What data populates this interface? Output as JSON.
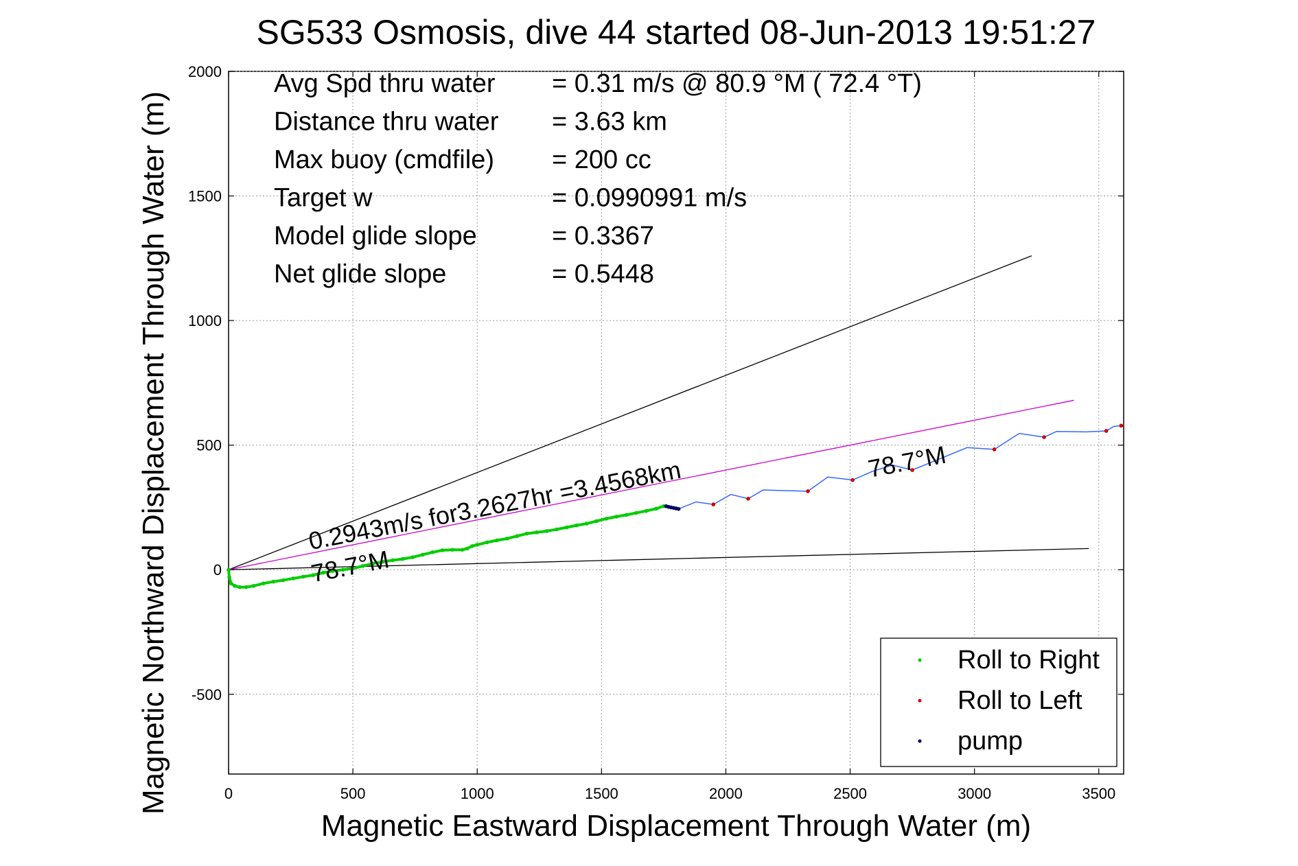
{
  "chart_data": {
    "type": "line",
    "title": "SG533 Osmosis, dive 44 started 08-Jun-2013 19:51:27",
    "xlabel": "Magnetic Eastward Displacement Through Water (m)",
    "ylabel": "Magnetic Northward Displacement Through Water (m)",
    "xlim": [
      0,
      3600
    ],
    "ylim": [
      -820,
      2000
    ],
    "xticks": [
      0,
      500,
      1000,
      1500,
      2000,
      2500,
      3000,
      3500
    ],
    "yticks": [
      -500,
      0,
      500,
      1000,
      1500,
      2000
    ],
    "xtick_labels": [
      "0",
      "500",
      "1000",
      "1500",
      "2000",
      "2500",
      "3000",
      "3500"
    ],
    "ytick_labels": [
      "-500",
      "0",
      "500",
      "1000",
      "1500",
      "2000"
    ],
    "grid": true,
    "legend_position": "bottom-right",
    "stats": [
      {
        "label": "Avg Spd thru water",
        "value": "=  0.31 m/s @  80.9 °M ( 72.4 °T)"
      },
      {
        "label": "Distance thru water",
        "value": "=  3.63 km"
      },
      {
        "label": "Max buoy (cmdfile)",
        "value": "= 200 cc"
      },
      {
        "label": "Target w",
        "value": "= 0.0990991 m/s"
      },
      {
        "label": "Model glide slope",
        "value": "= 0.3367"
      },
      {
        "label": "Net glide slope",
        "value": "= 0.5448"
      }
    ],
    "annotations": [
      {
        "text": "0.2943m/s for3.2627hr =3.4568km",
        "x": 330,
        "y": 80,
        "rotation_deg": -11
      },
      {
        "text": "78.7°M",
        "x": 340,
        "y": -50,
        "rotation_deg": -11
      },
      {
        "text": "78.7°M",
        "x": 2580,
        "y": 370,
        "rotation_deg": -11
      }
    ],
    "reference_lines": [
      {
        "name": "upper-cone",
        "color": "#000000",
        "x": [
          0,
          3230
        ],
        "y": [
          0,
          1260
        ]
      },
      {
        "name": "lower-cone",
        "color": "#000000",
        "x": [
          0,
          3460
        ],
        "y": [
          0,
          85
        ]
      },
      {
        "name": "heading-line",
        "color": "#cc00cc",
        "x": [
          0,
          3400
        ],
        "y": [
          0,
          680
        ]
      }
    ],
    "series": [
      {
        "name": "Roll to Right",
        "color": "#00cc00",
        "style": "dots",
        "x": [
          0,
          3,
          10,
          25,
          45,
          70,
          100,
          140,
          180,
          220,
          260,
          300,
          340,
          380,
          420,
          460,
          500,
          540,
          580,
          620,
          660,
          700,
          740,
          780,
          820,
          860,
          900,
          940,
          960,
          980,
          1000,
          1040,
          1080,
          1120,
          1160,
          1200,
          1240,
          1280,
          1320,
          1360,
          1400,
          1440,
          1480,
          1520,
          1560,
          1600,
          1640,
          1680,
          1720,
          1750
        ],
        "y": [
          0,
          -30,
          -55,
          -65,
          -70,
          -70,
          -65,
          -55,
          -48,
          -42,
          -35,
          -28,
          -22,
          -12,
          -5,
          0,
          5,
          15,
          25,
          32,
          38,
          43,
          50,
          60,
          70,
          78,
          80,
          80,
          85,
          95,
          100,
          110,
          118,
          125,
          135,
          145,
          150,
          155,
          162,
          170,
          178,
          185,
          195,
          205,
          213,
          220,
          228,
          236,
          245,
          255
        ]
      },
      {
        "name": "Roll to Left",
        "color": "#cc0000",
        "style": "dots",
        "x": [
          1950,
          2090,
          2330,
          2510,
          2750,
          3080,
          3280,
          3530,
          3590
        ],
        "y": [
          262,
          285,
          315,
          360,
          400,
          483,
          532,
          557,
          578
        ]
      },
      {
        "name": "pump",
        "color": "#000066",
        "style": "dots",
        "x": [
          1760,
          1770,
          1780,
          1790,
          1800,
          1810
        ],
        "y": [
          255,
          252,
          250,
          248,
          246,
          244
        ]
      },
      {
        "name": "track-line",
        "color": "#3366ff",
        "style": "line",
        "x": [
          1750,
          1810,
          1880,
          1950,
          2020,
          2090,
          2150,
          2330,
          2410,
          2510,
          2590,
          2670,
          2750,
          2860,
          2970,
          3080,
          3180,
          3280,
          3330,
          3450,
          3530,
          3560,
          3590
        ],
        "y": [
          255,
          244,
          272,
          262,
          302,
          285,
          320,
          315,
          372,
          360,
          395,
          420,
          400,
          445,
          490,
          483,
          547,
          532,
          555,
          553,
          557,
          575,
          578
        ]
      }
    ],
    "legend": [
      {
        "label": "Roll to Right",
        "color": "#00cc00"
      },
      {
        "label": "Roll to Left",
        "color": "#cc0000"
      },
      {
        "label": "pump",
        "color": "#000066"
      }
    ]
  }
}
